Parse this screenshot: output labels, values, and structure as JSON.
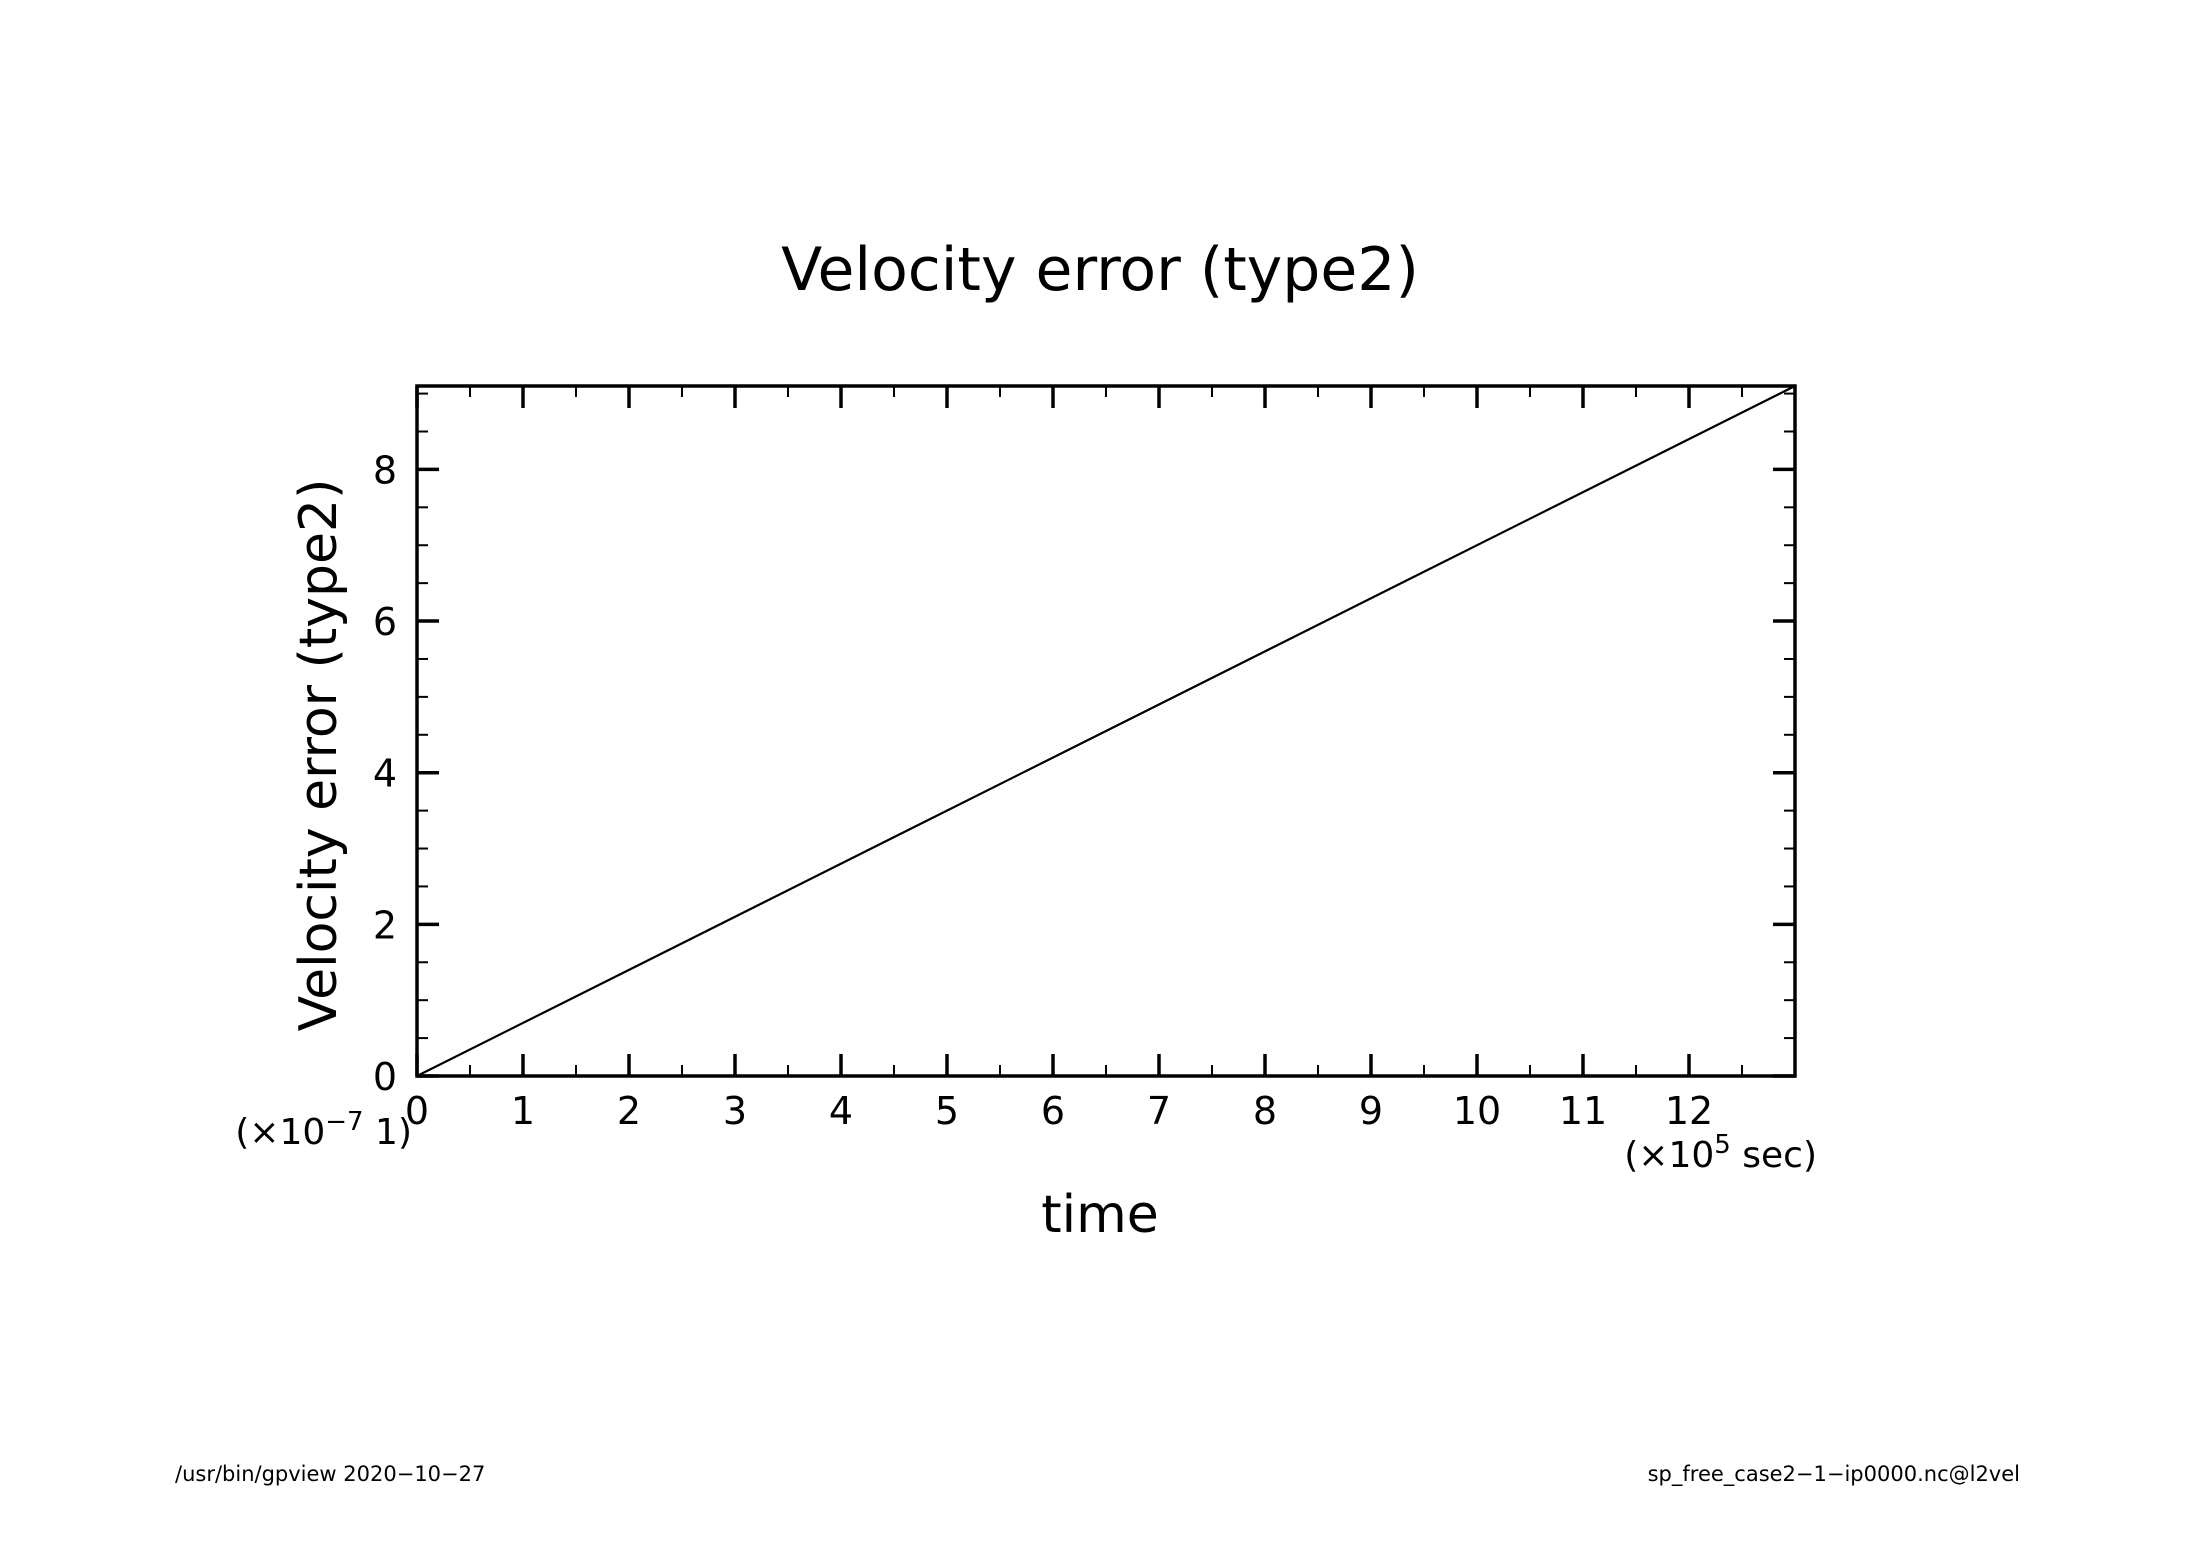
{
  "chart_data": {
    "type": "line",
    "title": "Velocity error (type2)",
    "xlabel": "time",
    "ylabel": "Velocity error (type2)",
    "x_scale_prefix": "(×10",
    "x_scale_exp": "5",
    "x_scale_suffix": " sec)",
    "y_scale_prefix": "(×10",
    "y_scale_exp": "−7",
    "y_scale_suffix": " 1)",
    "xlim": [
      0,
      13
    ],
    "ylim": [
      0,
      9.1
    ],
    "x_ticks": [
      0,
      1,
      2,
      3,
      4,
      5,
      6,
      7,
      8,
      9,
      10,
      11,
      12
    ],
    "y_ticks": [
      0,
      2,
      4,
      6,
      8
    ],
    "grid": false,
    "series": [
      {
        "x": [
          0,
          13
        ],
        "y": [
          0,
          9.1
        ],
        "color": "#000000"
      }
    ]
  },
  "footer": {
    "left": "/usr/bin/gpview   2020−10−27",
    "right": "sp_free_case2−1−ip0000.nc@l2vel"
  }
}
